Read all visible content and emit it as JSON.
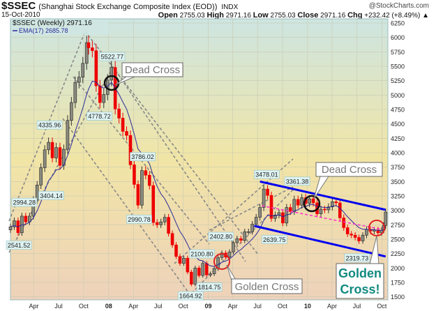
{
  "header": {
    "symbol": "$SSEC",
    "name": "(Shanghai Stock Exchange Composite Index (EOD))",
    "exchange": "INDX",
    "brand": "@StockCharts.com",
    "date": "15-Oct-2010",
    "open_label": "Open",
    "open": "2755.03",
    "high_label": "High",
    "high": "2971.16",
    "low_label": "Low",
    "low": "2755.03",
    "close_label": "Close",
    "close": "2971.16",
    "chg_label": "Chg",
    "chg": "+232.42 (+8.49%) ▲"
  },
  "chart_data": {
    "type": "candlestick",
    "legend": {
      "price": "$SSEC (Weekly) 2971.16",
      "ema": "EMA(17) 2685.78"
    },
    "ylim": [
      1500,
      6250
    ],
    "y_ticks": [
      "6250",
      "6000",
      "5750",
      "5500",
      "5250",
      "5000",
      "4750",
      "4500",
      "4250",
      "4000",
      "3750",
      "3500",
      "3250",
      "3000",
      "2750",
      "2500",
      "2250",
      "2000",
      "1750",
      "1500"
    ],
    "x_ticks": [
      {
        "label": "Apr",
        "date": "2007-04-01"
      },
      {
        "label": "Jul",
        "date": "2007-07-01"
      },
      {
        "label": "Oct",
        "date": "2007-10-01"
      },
      {
        "label": "08",
        "date": "2008-01-01",
        "bold": true
      },
      {
        "label": "Apr",
        "date": "2008-04-01"
      },
      {
        "label": "Jul",
        "date": "2008-07-01"
      },
      {
        "label": "Oct",
        "date": "2008-10-01"
      },
      {
        "label": "09",
        "date": "2009-01-01",
        "bold": true
      },
      {
        "label": "Apr",
        "date": "2009-04-01"
      },
      {
        "label": "Jul",
        "date": "2009-07-01"
      },
      {
        "label": "Oct",
        "date": "2009-10-01"
      },
      {
        "label": "10",
        "date": "2010-01-01",
        "bold": true
      },
      {
        "label": "Apr",
        "date": "2010-04-01"
      },
      {
        "label": "Jul",
        "date": "2010-07-01"
      },
      {
        "label": "Oct",
        "date": "2010-10-01"
      }
    ],
    "grid": true,
    "colors": {
      "up": "#555555",
      "down": "#ee0000",
      "ema": "#2a2a9a",
      "trend": "#0000ee",
      "mid_trend": "#ff33cc",
      "guides": "#888888"
    },
    "closes": [
      [
        "2007-01-05",
        2715
      ],
      [
        "2007-01-19",
        2820
      ],
      [
        "2007-02-02",
        2612
      ],
      [
        "2007-02-16",
        2900
      ],
      [
        "2007-03-02",
        2800
      ],
      [
        "2007-03-16",
        2900
      ],
      [
        "2007-03-30",
        3180
      ],
      [
        "2007-04-13",
        3440
      ],
      [
        "2007-04-27",
        3740
      ],
      [
        "2007-05-11",
        4050
      ],
      [
        "2007-05-25",
        4180
      ],
      [
        "2007-06-08",
        3910
      ],
      [
        "2007-06-22",
        4090
      ],
      [
        "2007-07-06",
        3780
      ],
      [
        "2007-07-20",
        4060
      ],
      [
        "2007-08-03",
        4560
      ],
      [
        "2007-08-17",
        4870
      ],
      [
        "2007-08-31",
        5220
      ],
      [
        "2007-09-14",
        5310
      ],
      [
        "2007-09-28",
        5550
      ],
      [
        "2007-10-12",
        5910
      ],
      [
        "2007-10-19",
        5820
      ],
      [
        "2007-11-02",
        5770
      ],
      [
        "2007-11-16",
        5160
      ],
      [
        "2007-11-30",
        4870
      ],
      [
        "2007-12-14",
        5010
      ],
      [
        "2007-12-28",
        5260
      ],
      [
        "2008-01-11",
        5480
      ],
      [
        "2008-01-25",
        4760
      ],
      [
        "2008-02-08",
        4600
      ],
      [
        "2008-02-22",
        4370
      ],
      [
        "2008-03-07",
        4300
      ],
      [
        "2008-03-21",
        3790
      ],
      [
        "2008-04-04",
        3450
      ],
      [
        "2008-04-18",
        3090
      ],
      [
        "2008-05-02",
        3690
      ],
      [
        "2008-05-16",
        3610
      ],
      [
        "2008-05-30",
        3430
      ],
      [
        "2008-06-13",
        2790
      ],
      [
        "2008-06-27",
        2750
      ],
      [
        "2008-07-11",
        2800
      ],
      [
        "2008-07-25",
        2880
      ],
      [
        "2008-08-08",
        2600
      ],
      [
        "2008-08-22",
        2400
      ],
      [
        "2008-09-05",
        2200
      ],
      [
        "2008-09-19",
        2080
      ],
      [
        "2008-10-03",
        2170
      ],
      [
        "2008-10-17",
        1930
      ],
      [
        "2008-10-31",
        1720
      ],
      [
        "2008-11-14",
        2000
      ],
      [
        "2008-11-28",
        1870
      ],
      [
        "2008-12-12",
        2080
      ],
      [
        "2008-12-26",
        1880
      ],
      [
        "2009-01-09",
        1900
      ],
      [
        "2009-01-23",
        1990
      ],
      [
        "2009-02-06",
        2180
      ],
      [
        "2009-02-20",
        2260
      ],
      [
        "2009-03-06",
        2190
      ],
      [
        "2009-03-20",
        2280
      ],
      [
        "2009-04-03",
        2440
      ],
      [
        "2009-04-17",
        2510
      ],
      [
        "2009-05-01",
        2480
      ],
      [
        "2009-05-15",
        2630
      ],
      [
        "2009-05-29",
        2630
      ],
      [
        "2009-06-12",
        2760
      ],
      [
        "2009-06-26",
        2880
      ],
      [
        "2009-07-10",
        3050
      ],
      [
        "2009-07-24",
        3370
      ],
      [
        "2009-08-07",
        3260
      ],
      [
        "2009-08-21",
        2860
      ],
      [
        "2009-09-04",
        2920
      ],
      [
        "2009-09-18",
        2960
      ],
      [
        "2009-10-02",
        2780
      ],
      [
        "2009-10-16",
        3050
      ],
      [
        "2009-10-30",
        2980
      ],
      [
        "2009-11-13",
        3190
      ],
      [
        "2009-11-27",
        3090
      ],
      [
        "2009-12-11",
        3220
      ],
      [
        "2009-12-25",
        3120
      ],
      [
        "2010-01-08",
        3200
      ],
      [
        "2010-01-22",
        3130
      ],
      [
        "2010-02-05",
        2940
      ],
      [
        "2010-02-19",
        3020
      ],
      [
        "2010-03-05",
        3010
      ],
      [
        "2010-03-19",
        3060
      ],
      [
        "2010-04-02",
        3150
      ],
      [
        "2010-04-16",
        3130
      ],
      [
        "2010-04-30",
        2870
      ],
      [
        "2010-05-14",
        2700
      ],
      [
        "2010-05-28",
        2590
      ],
      [
        "2010-06-11",
        2570
      ],
      [
        "2010-06-25",
        2530
      ],
      [
        "2010-07-09",
        2470
      ],
      [
        "2010-07-23",
        2570
      ],
      [
        "2010-08-06",
        2670
      ],
      [
        "2010-08-20",
        2640
      ],
      [
        "2010-09-03",
        2660
      ],
      [
        "2010-09-17",
        2610
      ],
      [
        "2010-09-30",
        2655
      ],
      [
        "2010-10-08",
        2739
      ],
      [
        "2010-10-15",
        2971.16
      ]
    ],
    "price_labels": [
      {
        "text": "2994.28",
        "date": "2007-02-25",
        "value": 2994.28,
        "pos": "above"
      },
      {
        "text": "2541.52",
        "date": "2007-02-05",
        "value": 2541.52,
        "pos": "below"
      },
      {
        "text": "4335.96",
        "date": "2007-05-29",
        "value": 4335.96,
        "pos": "above"
      },
      {
        "text": "3404.14",
        "date": "2007-06-04",
        "value": 3404.14,
        "pos": "below"
      },
      {
        "text": "5522.77",
        "date": "2008-01-14",
        "value": 5522.77,
        "pos": "above"
      },
      {
        "text": "4778.72",
        "date": "2007-11-28",
        "value": 4778.72,
        "pos": "below"
      },
      {
        "text": "3786.02",
        "date": "2008-05-05",
        "value": 3786.02,
        "pos": "above"
      },
      {
        "text": "2990.78",
        "date": "2008-04-22",
        "value": 2990.78,
        "pos": "below"
      },
      {
        "text": "2402.80",
        "date": "2009-02-17",
        "value": 2402.8,
        "pos": "above"
      },
      {
        "text": "2100.80",
        "date": "2008-12-09",
        "value": 2100.8,
        "pos": "above"
      },
      {
        "text": "1814.75",
        "date": "2009-01-05",
        "value": 1814.75,
        "pos": "below"
      },
      {
        "text": "1664.92",
        "date": "2008-10-28",
        "value": 1664.92,
        "pos": "below"
      },
      {
        "text": "3478.01",
        "date": "2009-08-04",
        "value": 3478.01,
        "pos": "above"
      },
      {
        "text": "3361.38",
        "date": "2009-11-24",
        "value": 3361.38,
        "pos": "above"
      },
      {
        "text": "2639.75",
        "date": "2009-09-01",
        "value": 2639.75,
        "pos": "below"
      },
      {
        "text": "2319.73",
        "date": "2010-07-02",
        "value": 2319.73,
        "pos": "below"
      }
    ],
    "annotations": {
      "dead_cross_1": "Dead Cross",
      "dead_cross_2": "Dead Cross",
      "golden_cross_1": "Golden Cross",
      "golden_cross_2_line1": "Golden",
      "golden_cross_2_line2": "Cross!"
    },
    "trend_lines": [
      {
        "kind": "trend",
        "from": [
          "2009-07-10",
          3500
        ],
        "to": [
          "2010-10-15",
          3010
        ]
      },
      {
        "kind": "trend",
        "from": [
          "2009-06-19",
          2730
        ],
        "to": [
          "2010-10-15",
          2200
        ]
      },
      {
        "kind": "mid_trend",
        "from": [
          "2009-07-17",
          3080
        ],
        "to": [
          "2010-10-01",
          2670
        ]
      }
    ]
  }
}
